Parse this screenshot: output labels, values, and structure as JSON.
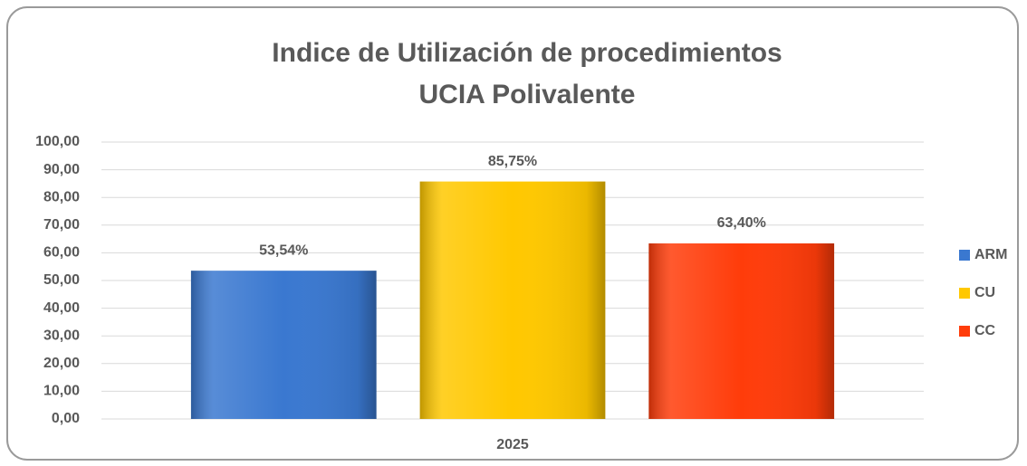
{
  "chart_data": {
    "type": "bar",
    "title": [
      "Indice de Utilización de procedimientos",
      "UCIA Polivalente"
    ],
    "categories": [
      "2025"
    ],
    "series": [
      {
        "name": "ARM",
        "color": "#3a78d0",
        "values": [
          53.54
        ],
        "value_labels": [
          "53,54%"
        ]
      },
      {
        "name": "CU",
        "color": "#ffc800",
        "values": [
          85.75
        ],
        "value_labels": [
          "85,75%"
        ]
      },
      {
        "name": "CC",
        "color": "#ff3c0a",
        "values": [
          63.4
        ],
        "value_labels": [
          "63,40%"
        ]
      }
    ],
    "ylim": [
      0,
      100
    ],
    "yticks": [
      {
        "value": 0,
        "label": "0,00"
      },
      {
        "value": 10,
        "label": "10,00"
      },
      {
        "value": 20,
        "label": "20,00"
      },
      {
        "value": 30,
        "label": "30,00"
      },
      {
        "value": 40,
        "label": "40,00"
      },
      {
        "value": 50,
        "label": "50,00"
      },
      {
        "value": 60,
        "label": "60,00"
      },
      {
        "value": 70,
        "label": "70,00"
      },
      {
        "value": 80,
        "label": "80,00"
      },
      {
        "value": 90,
        "label": "90,00"
      },
      {
        "value": 100,
        "label": "100,00"
      }
    ],
    "grid": true,
    "legend": "right"
  }
}
